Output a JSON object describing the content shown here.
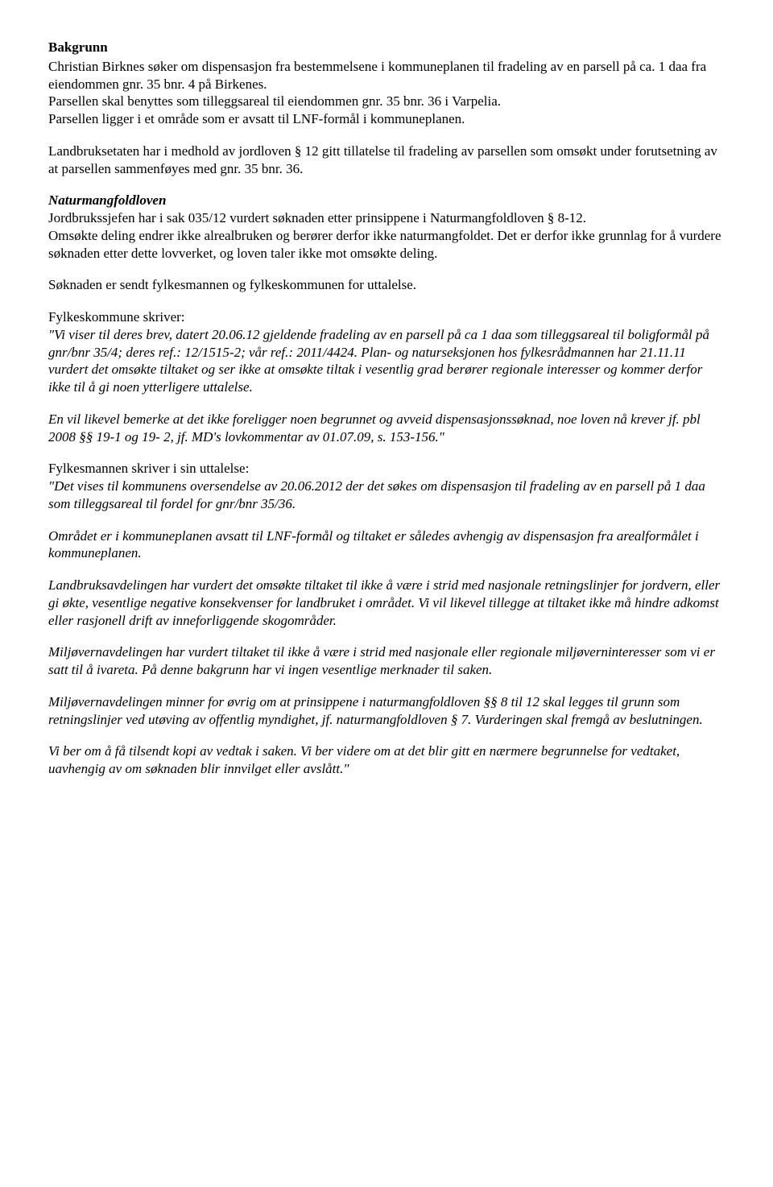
{
  "heading": "Bakgrunn",
  "p1": "Christian Birknes søker om dispensasjon fra bestemmelsene i kommuneplanen til fradeling av en parsell på ca. 1 daa fra eiendommen gnr. 35 bnr. 4 på Birkenes.",
  "p2": "Parsellen skal benyttes som tilleggsareal til eiendommen gnr. 35 bnr. 36 i Varpelia.",
  "p3": "Parsellen ligger i et område som er avsatt til LNF-formål i kommuneplanen.",
  "p4": "Landbruksetaten har i medhold av jordloven § 12 gitt tillatelse til fradeling av parsellen som omsøkt under forutsetning av at parsellen sammenføyes med gnr. 35 bnr. 36.",
  "nm_heading": "Naturmangfoldloven",
  "nm_p1": "Jordbrukssjefen har i sak 035/12 vurdert søknaden etter prinsippene i Naturmangfoldloven § 8-12.",
  "nm_p2": "Omsøkte deling endrer ikke alrealbruken og berører derfor ikke naturmangfoldet. Det er derfor ikke grunnlag for å vurdere søknaden etter dette lovverket, og loven taler ikke mot omsøkte deling.",
  "p5": "Søknaden er sendt fylkesmannen og fylkeskommunen for uttalelse.",
  "fk_intro": "Fylkeskommune skriver:",
  "fk_q1": "\"Vi viser til deres brev, datert 20.06.12 gjeldende fradeling av en parsell på ca 1 daa som tilleggsareal til boligformål på gnr/bnr 35/4; deres ref.: 12/1515-2; vår ref.: 2011/4424. Plan- og naturseksjonen hos fylkesrådmannen har 21.11.11 vurdert det omsøkte tiltaket og ser ikke at omsøkte tiltak i vesentlig grad berører regionale interesser og kommer derfor ikke til å gi noen ytterligere uttalelse.",
  "fk_q2a": "En vil likevel bemerke at det ikke foreligger noen begrunnet og avveid dispensasjonssøknad, noe loven nå krever jf. pbl 2008 §§ 19-1 og 19- 2, jf. MD's lovkommentar av 01.07.09, s. 153-156.",
  "fk_q2b": "\"",
  "fm_intro": "Fylkesmannen skriver i sin uttalelse:",
  "fm_q1": "\"Det vises til kommunens oversendelse av 20.06.2012 der det søkes om dispensasjon til fradeling av en parsell på 1 daa som tilleggsareal til fordel for gnr/bnr 35/36.",
  "fm_q2": "Området er i kommuneplanen avsatt til LNF-formål og tiltaket er således avhengig av dispensasjon fra arealformålet i kommuneplanen.",
  "fm_q3": "Landbruksavdelingen har vurdert det omsøkte tiltaket til ikke å være i strid med nasjonale retningslinjer for jordvern, eller gi økte, vesentlige negative konsekvenser for landbruket i området. Vi vil likevel tillegge at tiltaket ikke må hindre adkomst eller rasjonell drift av inneforliggende skogområder.",
  "fm_q4": "Miljøvernavdelingen har vurdert tiltaket til ikke å være i strid med nasjonale eller regionale miljøverninteresser som vi er satt til å ivareta. På denne bakgrunn har vi ingen vesentlige merknader til saken.",
  "fm_q5": "Miljøvernavdelingen minner for øvrig om at prinsippene i naturmangfoldloven §§ 8 til 12 skal legges til grunn som retningslinjer ved utøving av offentlig myndighet, jf. naturmangfoldloven § 7. Vurderingen skal fremgå av beslutningen.",
  "fm_q6": "Vi ber om å få tilsendt kopi av vedtak i saken. Vi ber videre om at det blir gitt en nærmere begrunnelse for vedtaket, uavhengig av om søknaden blir innvilget eller avslått.\""
}
